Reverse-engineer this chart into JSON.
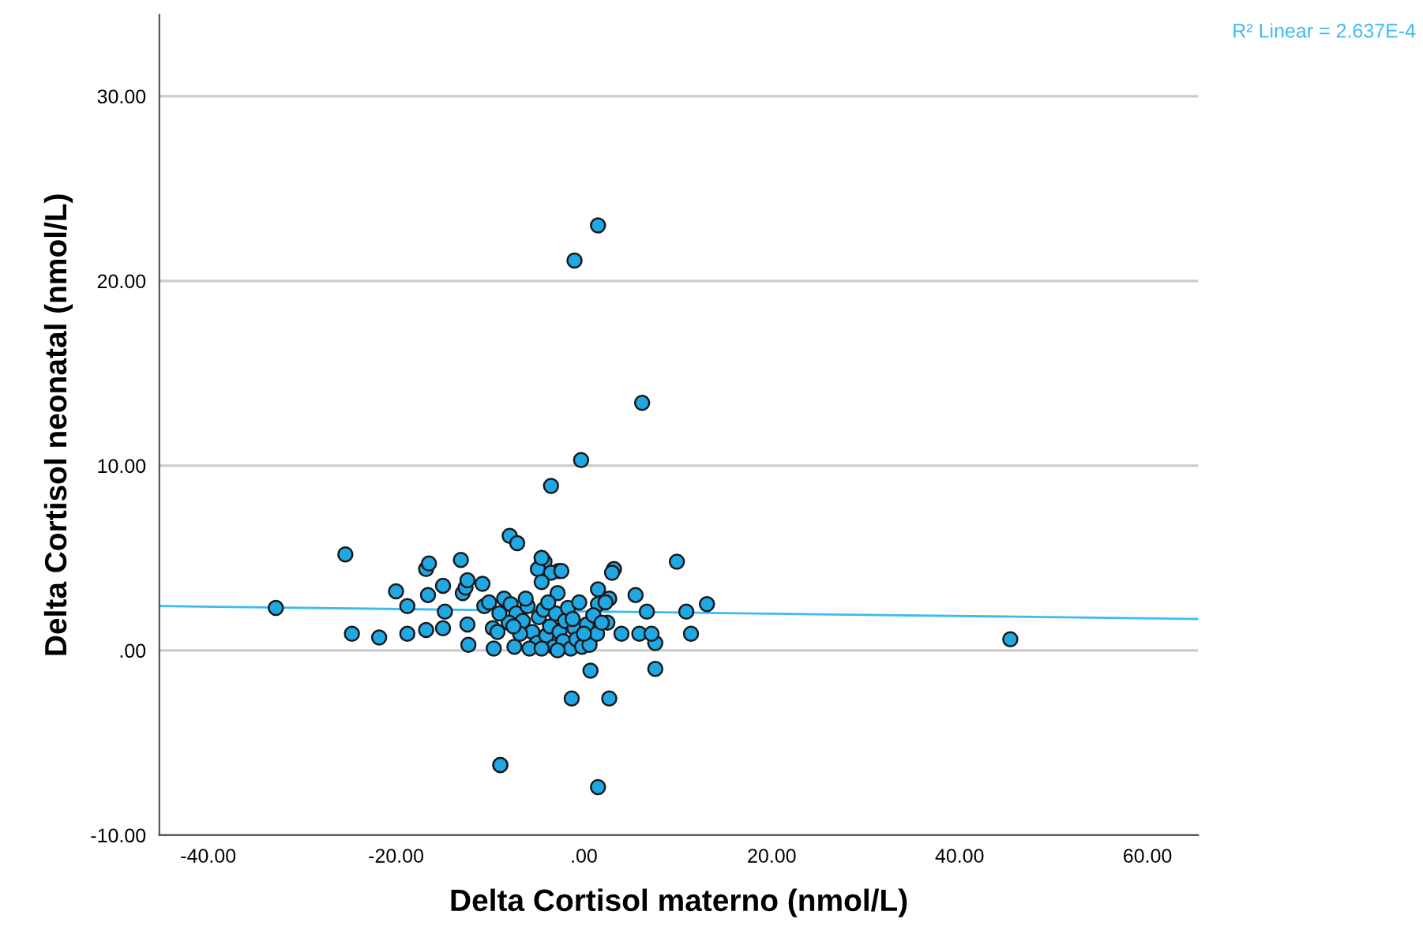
{
  "chart_data": {
    "type": "scatter",
    "xlabel": "Delta Cortisol materno (nmol/L)",
    "ylabel": "Delta Cortisol neonatal (nmol/L)",
    "annotations": [
      "R² Linear = 2.637E-4"
    ],
    "xlim": [
      -45.2,
      65.4
    ],
    "ylim": [
      -10,
      34.4
    ],
    "xticks": [
      {
        "value": -40,
        "label": "-40.00"
      },
      {
        "value": -20,
        "label": "-20.00"
      },
      {
        "value": 0,
        "label": ".00"
      },
      {
        "value": 20,
        "label": "20.00"
      },
      {
        "value": 40,
        "label": "40.00"
      },
      {
        "value": 60,
        "label": "60.00"
      }
    ],
    "yticks": [
      {
        "value": -10,
        "label": "-10.00"
      },
      {
        "value": 0,
        "label": ".00"
      },
      {
        "value": 10,
        "label": "10.00"
      },
      {
        "value": 20,
        "label": "20.00"
      },
      {
        "value": 30,
        "label": "30.00"
      }
    ],
    "grid": "y",
    "marker": "circle",
    "legend": false,
    "series": [
      {
        "color": "#1fa8e4",
        "x": [
          -32.8,
          -25.4,
          -24.7,
          -21.8,
          -20,
          -18.8,
          -18.8,
          -16.8,
          -16.5,
          -16.6,
          -16.8,
          -15.0,
          -14.8,
          -15.0,
          -13.1,
          -12.9,
          -12.6,
          -12.4,
          -12.3,
          -12.4,
          -10.6,
          -9.6,
          -9.7,
          -8.9,
          -7.9,
          -7.1,
          -3.5,
          -4.5,
          -4.2,
          -4.9,
          -2.7,
          9.9,
          13.1,
          10.9,
          11.4,
          7.6,
          7.6,
          6.7,
          5.5,
          5.9,
          7.2,
          4.0,
          3.2,
          3.0,
          2.7,
          1.5,
          1.5,
          2.5,
          0.7,
          -1.3,
          2.7,
          -2.8,
          -4.5,
          -3.5,
          -2.4,
          -4.5,
          -10.8,
          -10.1,
          -7.4,
          1.5,
          -1.0,
          6.2,
          -0.3,
          -8.9,
          1.5,
          45.4,
          -8.5,
          -7.8,
          -7.2,
          -6.5,
          -6.0,
          -5.5,
          -5.0,
          -4.8,
          -4.3,
          -4.0,
          -3.6,
          -3.2,
          -3.0,
          -2.6,
          -2.2,
          -2.0,
          -1.7,
          -1.4,
          -1.0,
          -0.8,
          -0.5,
          -0.2,
          0.3,
          0.6,
          1.0,
          1.4,
          1.9,
          2.3,
          -6.8,
          -5.8,
          -9.2,
          -8.0,
          -3.8,
          -2.8,
          -1.2,
          0.0,
          -4.5,
          -6.2,
          -7.5,
          -9.0
        ],
        "values": [
          2.3,
          5.2,
          0.9,
          0.7,
          3.2,
          2.4,
          0.9,
          4.4,
          4.7,
          3.0,
          1.1,
          3.5,
          2.1,
          1.2,
          4.9,
          3.1,
          3.4,
          3.8,
          0.3,
          1.4,
          2.4,
          0.1,
          1.2,
          -6.2,
          6.2,
          5.8,
          8.9,
          5.0,
          4.8,
          4.4,
          4.3,
          4.8,
          2.5,
          2.1,
          0.9,
          -1.0,
          0.4,
          2.1,
          3.0,
          0.9,
          0.9,
          0.9,
          4.4,
          4.2,
          2.8,
          3.3,
          2.5,
          1.5,
          -1.1,
          -2.6,
          -2.6,
          3.1,
          5.0,
          4.2,
          4.3,
          3.7,
          3.6,
          2.6,
          0.2,
          23.0,
          21.1,
          13.4,
          10.3,
          -6.2,
          -7.4,
          0.6,
          2.8,
          2.5,
          2.0,
          1.6,
          2.4,
          1.0,
          0.4,
          1.8,
          2.2,
          0.8,
          1.3,
          0.2,
          2.0,
          1.0,
          0.5,
          1.6,
          2.3,
          0.1,
          1.2,
          0.6,
          2.6,
          0.2,
          1.4,
          0.3,
          1.9,
          0.9,
          1.5,
          2.6,
          0.9,
          0.1,
          1.0,
          1.5,
          2.6,
          0.0,
          1.7,
          0.9,
          0.1,
          2.8,
          1.3,
          2.0
        ]
      },
      {
        "type": "line",
        "color": "#3dbbf0",
        "x": [
          -45.2,
          65.4
        ],
        "values": [
          2.4,
          1.7
        ],
        "marker": "none"
      }
    ]
  }
}
